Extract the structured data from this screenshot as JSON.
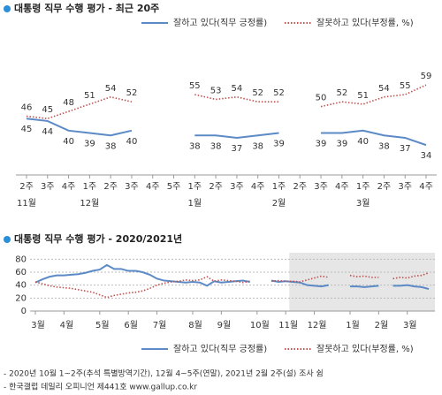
{
  "charts": [
    {
      "type": "line",
      "title": "대통령 직무 수행 평가 - 최근 20주",
      "categories": [
        "2주",
        "3주",
        "4주",
        "1주",
        "2주",
        "3주",
        "4주",
        "5주",
        "1주",
        "2주",
        "3주",
        "4주",
        "1주",
        "2주",
        "3주",
        "4주",
        "1주",
        "2주",
        "3주",
        "4주"
      ],
      "month_labels": [
        "11월",
        null,
        null,
        "12월",
        null,
        null,
        null,
        null,
        "1월",
        null,
        null,
        null,
        "2월",
        null,
        null,
        null,
        "3월",
        null,
        null,
        null
      ],
      "series": [
        {
          "name": "잘하고 있다(직무 긍정률)",
          "color": "#5b8ac6",
          "style": "solid",
          "values": [
            45,
            44,
            40,
            39,
            38,
            40,
            null,
            null,
            38,
            38,
            37,
            38,
            39,
            null,
            39,
            39,
            40,
            38,
            37,
            34
          ]
        },
        {
          "name": "잘못하고 있다(부정률, %)",
          "color": "#c0504d",
          "style": "dotted",
          "values": [
            46,
            45,
            48,
            51,
            54,
            52,
            null,
            null,
            55,
            53,
            54,
            52,
            52,
            null,
            50,
            52,
            51,
            54,
            55,
            59
          ]
        }
      ],
      "ylim": [
        30,
        62
      ],
      "show_values": true
    },
    {
      "type": "line",
      "title": "대통령 직무 수행 평가 - 2020/2021년",
      "categories": [
        "3월",
        null,
        null,
        null,
        "4월",
        null,
        null,
        null,
        null,
        "5월",
        null,
        null,
        null,
        "6월",
        null,
        null,
        null,
        "7월",
        null,
        null,
        null,
        null,
        "8월",
        null,
        null,
        null,
        "9월",
        null,
        null,
        null,
        null,
        "10월",
        null,
        null,
        null,
        "11월",
        null,
        null,
        null,
        "12월",
        null,
        null,
        null,
        null,
        "1월",
        null,
        null,
        null,
        "2월",
        null,
        null,
        null,
        "3월",
        null,
        null,
        null
      ],
      "series": [
        {
          "name": "잘하고 있다(직무 긍정률)",
          "color": "#5b8ac6",
          "style": "solid",
          "values": [
            44,
            49,
            53,
            55,
            55,
            56,
            57,
            59,
            62,
            64,
            71,
            65,
            65,
            62,
            62,
            60,
            56,
            50,
            47,
            46,
            45,
            44,
            45,
            44,
            39,
            46,
            44,
            45,
            46,
            47,
            45,
            null,
            null,
            47,
            45,
            46,
            45,
            44,
            40,
            39,
            38,
            40,
            null,
            null,
            38,
            38,
            37,
            38,
            39,
            null,
            39,
            39,
            40,
            38,
            37,
            34
          ]
        },
        {
          "name": "잘못하고 있다(부정률, %)",
          "color": "#c0504d",
          "style": "dotted",
          "values": [
            45,
            42,
            39,
            37,
            36,
            35,
            33,
            31,
            29,
            25,
            21,
            24,
            26,
            28,
            29,
            31,
            35,
            40,
            43,
            45,
            46,
            48,
            47,
            48,
            53,
            46,
            48,
            47,
            46,
            44,
            46,
            null,
            null,
            46,
            47,
            46,
            46,
            45,
            48,
            51,
            54,
            52,
            null,
            null,
            55,
            53,
            54,
            52,
            52,
            null,
            50,
            52,
            51,
            54,
            55,
            59
          ]
        }
      ],
      "ylim": [
        0,
        90
      ],
      "yticks": [
        0,
        20,
        40,
        60,
        80
      ],
      "grid": true,
      "shade_recent": true
    }
  ],
  "footnotes": [
    "- 2020년 10월 1~2주(추석 특별방역기간), 12월 4~5주(연말), 2021년 2월 2주(설) 조사 쉼",
    "- 한국갤럽 데일리 오피니언 제441호 www.gallup.co.kr"
  ]
}
